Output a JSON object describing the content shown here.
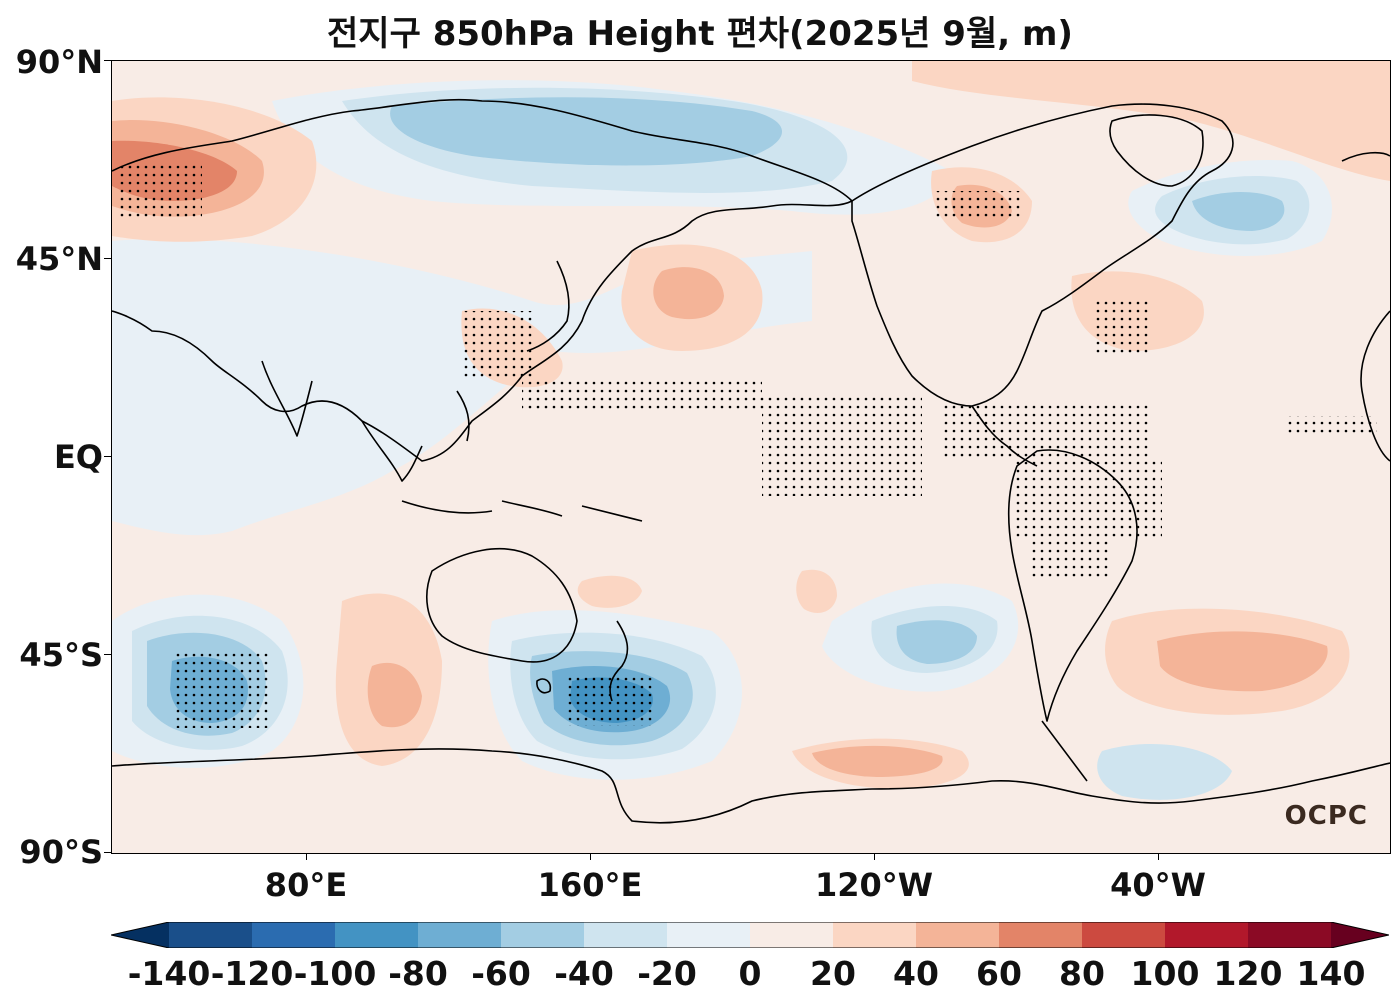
{
  "title": "전지구 850hPa Height 편차(2025년 9월, m)",
  "y_ticks": [
    "90°N",
    "45°N",
    "EQ",
    "45°S",
    "90°S"
  ],
  "x_ticks": [
    "80°E",
    "160°E",
    "120°W",
    "40°W"
  ],
  "colorbar": {
    "labels": [
      "-140",
      "-120",
      "-100",
      "-80",
      "-60",
      "-40",
      "-20",
      "0",
      "20",
      "40",
      "60",
      "80",
      "100",
      "120",
      "140"
    ],
    "colors": [
      "#053061",
      "#1a4f8a",
      "#2b6cb0",
      "#4393c3",
      "#6eaed3",
      "#a3cde3",
      "#cfe4ef",
      "#e8f0f6",
      "#f8ece6",
      "#fbd6c3",
      "#f4b498",
      "#e38468",
      "#cc4a40",
      "#b2182b",
      "#8b0a25",
      "#67001f"
    ]
  },
  "logo": "OCPC"
}
